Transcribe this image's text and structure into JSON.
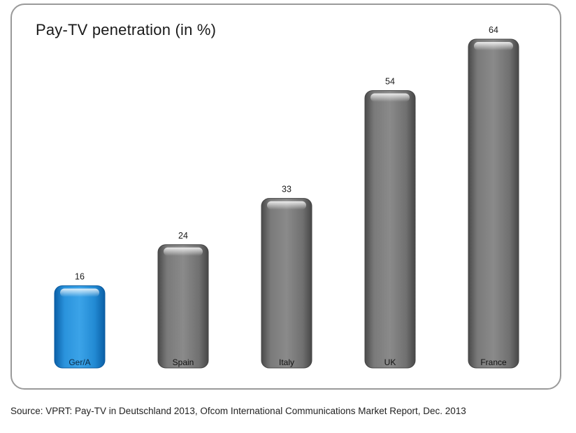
{
  "chart_data": {
    "type": "bar",
    "title": "Pay-TV penetration (in %)",
    "categories": [
      "Ger/A",
      "Spain",
      "Italy",
      "UK",
      "France"
    ],
    "values": [
      16,
      24,
      33,
      54,
      64
    ],
    "ylim": [
      0,
      64
    ],
    "grid": false,
    "legend": "none",
    "highlight_category": "Ger/A",
    "colors": {
      "highlight": "#1e88d0",
      "default": "#6e6e6e"
    }
  },
  "footer": {
    "source": "Source: VPRT: Pay-TV in Deutschland 2013, Ofcom International Communications Market Report, Dec. 2013"
  }
}
